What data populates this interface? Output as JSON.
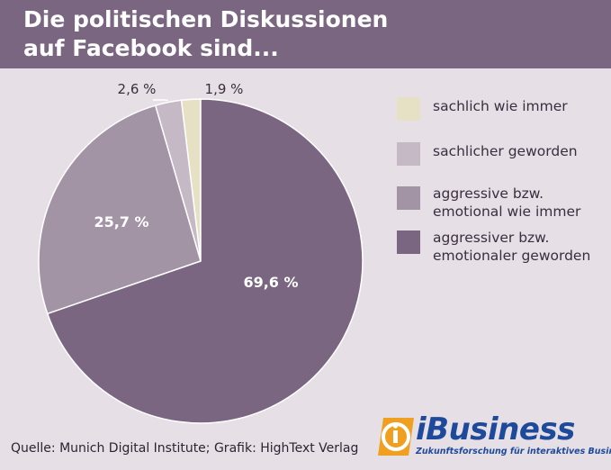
{
  "chart_data": {
    "type": "pie",
    "title": "Die politischen Diskussionen auf Facebook sind...",
    "title_lines": [
      "Die politischen Diskussionen",
      "auf Facebook sind..."
    ],
    "slices": [
      {
        "label": "sachlich wie immer",
        "value": 1.9,
        "value_label": "1,9 %",
        "color": "#e6e0c4"
      },
      {
        "label": "sachlicher geworden",
        "value": 2.6,
        "value_label": "2,6 %",
        "color": "#c5b9c6"
      },
      {
        "label": "aggressive bzw.\nemotional wie immer",
        "value": 25.7,
        "value_label": "25,7 %",
        "color": "#a293a5"
      },
      {
        "label": "aggressiver bzw.\nemotionaler geworden",
        "value": 69.6,
        "value_label": "69,6 %",
        "color": "#7a6680"
      }
    ],
    "legend_placement": "right"
  },
  "source": "Quelle: Munich Digital Institute; Grafik: HighText Verlag",
  "logo": {
    "text": "iBusiness",
    "tagline": "Zukunftsforschung für interaktives Business"
  },
  "colors": {
    "header": "#7a6680",
    "background": "#e6dfe6",
    "logo_blue": "#1d4a9a",
    "logo_orange": "#f0a020"
  }
}
